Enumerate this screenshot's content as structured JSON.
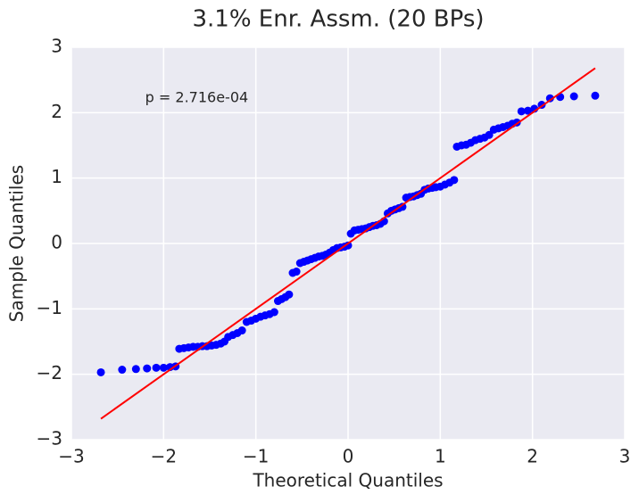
{
  "chart_data": {
    "type": "scatter",
    "title": "3.1% Enr. Assm. (20 BPs)",
    "xlabel": "Theoretical Quantiles",
    "ylabel": "Sample Quantiles",
    "annotation": {
      "text": "p = 2.716e-04",
      "x": -2.2,
      "y": 2.22
    },
    "xlim": [
      -3,
      3
    ],
    "ylim": [
      -3,
      3
    ],
    "xticks": [
      {
        "value": -3,
        "label": "−3"
      },
      {
        "value": -2,
        "label": "−2"
      },
      {
        "value": -1,
        "label": "−1"
      },
      0,
      1,
      2,
      3
    ],
    "yticks": [
      {
        "value": -3,
        "label": "−3"
      },
      {
        "value": -2,
        "label": "−2"
      },
      {
        "value": -1,
        "label": "−1"
      },
      0,
      1,
      2,
      3
    ],
    "grid": true,
    "points": {
      "color": "#0000ff",
      "x": [
        -2.68,
        -2.45,
        -2.3,
        -2.18,
        -2.08,
        -2.0,
        -1.93,
        -1.87,
        -1.83,
        -1.78,
        -1.73,
        -1.68,
        -1.63,
        -1.58,
        -1.53,
        -1.48,
        -1.43,
        -1.38,
        -1.34,
        -1.3,
        -1.25,
        -1.2,
        -1.15,
        -1.1,
        -1.05,
        -1.0,
        -0.95,
        -0.9,
        -0.85,
        -0.8,
        -0.76,
        -0.72,
        -0.68,
        -0.64,
        -0.6,
        -0.56,
        -0.52,
        -0.48,
        -0.44,
        -0.4,
        -0.36,
        -0.32,
        -0.28,
        -0.24,
        -0.2,
        -0.16,
        -0.12,
        -0.08,
        -0.04,
        0.0,
        0.03,
        0.07,
        0.11,
        0.15,
        0.19,
        0.23,
        0.27,
        0.31,
        0.35,
        0.39,
        0.43,
        0.47,
        0.51,
        0.55,
        0.59,
        0.63,
        0.67,
        0.71,
        0.75,
        0.79,
        0.83,
        0.87,
        0.91,
        0.95,
        1.0,
        1.05,
        1.1,
        1.15,
        1.18,
        1.23,
        1.28,
        1.33,
        1.38,
        1.43,
        1.48,
        1.53,
        1.58,
        1.63,
        1.68,
        1.73,
        1.78,
        1.83,
        1.88,
        1.95,
        2.02,
        2.1,
        2.19,
        2.3,
        2.45,
        2.68
      ],
      "y": [
        -1.97,
        -1.93,
        -1.92,
        -1.91,
        -1.9,
        -1.9,
        -1.89,
        -1.88,
        -1.61,
        -1.6,
        -1.59,
        -1.58,
        -1.58,
        -1.57,
        -1.57,
        -1.56,
        -1.55,
        -1.53,
        -1.5,
        -1.43,
        -1.4,
        -1.37,
        -1.33,
        -1.2,
        -1.18,
        -1.15,
        -1.12,
        -1.1,
        -1.08,
        -1.05,
        -0.88,
        -0.85,
        -0.82,
        -0.78,
        -0.45,
        -0.43,
        -0.3,
        -0.28,
        -0.26,
        -0.24,
        -0.22,
        -0.2,
        -0.19,
        -0.17,
        -0.14,
        -0.1,
        -0.07,
        -0.06,
        -0.05,
        -0.03,
        0.15,
        0.2,
        0.21,
        0.22,
        0.23,
        0.25,
        0.27,
        0.28,
        0.3,
        0.34,
        0.46,
        0.5,
        0.52,
        0.54,
        0.56,
        0.7,
        0.71,
        0.72,
        0.74,
        0.76,
        0.82,
        0.84,
        0.85,
        0.86,
        0.87,
        0.9,
        0.93,
        0.97,
        1.48,
        1.5,
        1.51,
        1.54,
        1.58,
        1.6,
        1.62,
        1.66,
        1.74,
        1.76,
        1.78,
        1.8,
        1.83,
        1.85,
        2.02,
        2.03,
        2.06,
        2.12,
        2.22,
        2.24,
        2.25,
        2.26
      ]
    },
    "fit_line": {
      "color": "#ff0000",
      "x": [
        -2.68,
        2.68
      ],
      "y": [
        -2.68,
        2.68
      ]
    }
  }
}
